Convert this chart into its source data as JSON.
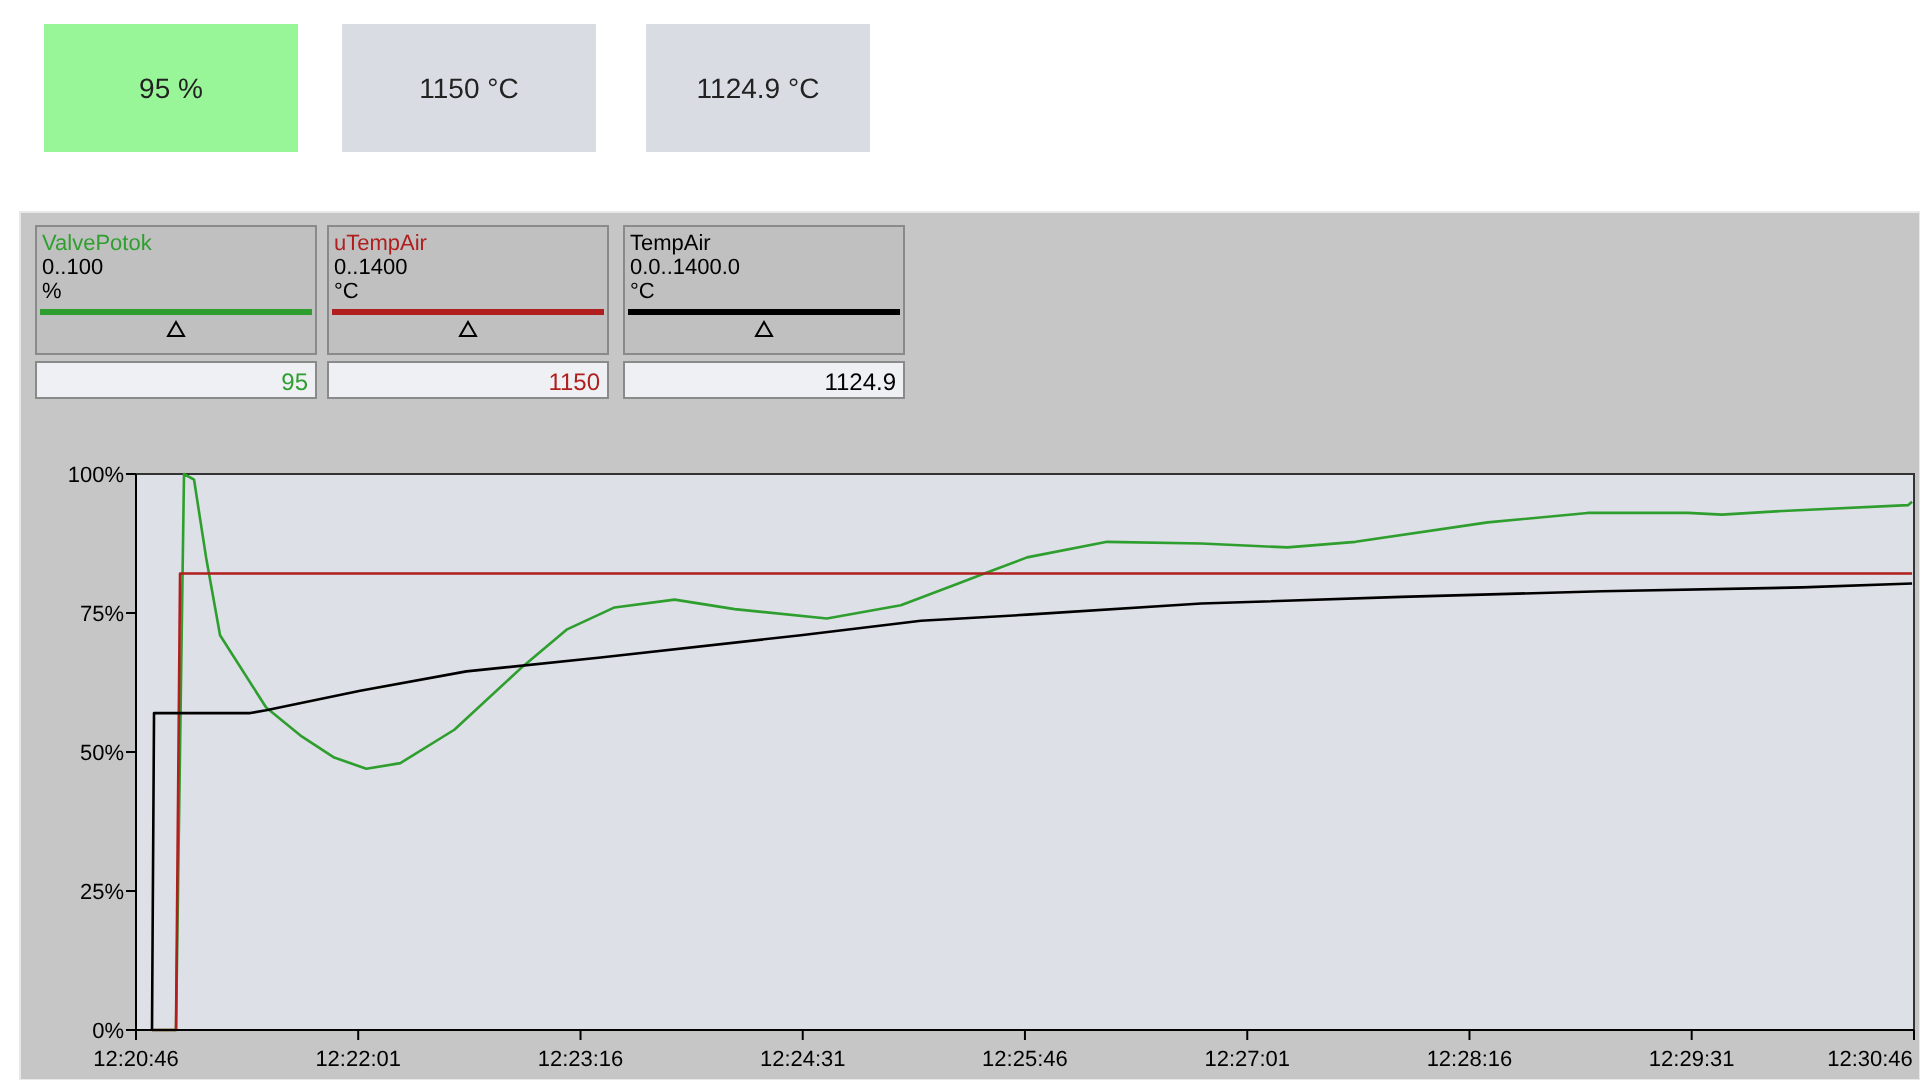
{
  "chart_data": {
    "type": "line",
    "annotations": [
      "95 %",
      "1150 °C",
      "1124.9 °C",
      "0..100",
      "%",
      "95",
      "0..1400",
      "°C",
      "1150",
      "0.0..1400.0",
      "°C",
      "1124.9"
    ],
    "xlim": [
      12.34611,
      12.51278
    ],
    "xticks": [
      {
        "value": 12.34611,
        "label": "12:20:46"
      },
      {
        "value": 12.36694,
        "label": "12:22:01"
      },
      {
        "value": 12.38778,
        "label": "12:23:16"
      },
      {
        "value": 12.40861,
        "label": "12:24:31"
      },
      {
        "value": 12.42944,
        "label": "12:25:46"
      },
      {
        "value": 12.45028,
        "label": "12:27:01"
      },
      {
        "value": 12.47111,
        "label": "12:28:16"
      },
      {
        "value": 12.49194,
        "label": "12:29:31"
      },
      {
        "value": 12.51278,
        "label": "12:30:46"
      }
    ],
    "ylim": [
      0,
      100
    ],
    "yticks": [
      {
        "value": 0,
        "label": "0%"
      },
      {
        "value": 25,
        "label": "25%"
      },
      {
        "value": 50,
        "label": "50%"
      },
      {
        "value": 75,
        "label": "75%"
      },
      {
        "value": 100,
        "label": "100%"
      }
    ],
    "grid": false,
    "legend": "top left",
    "marker": "none",
    "series": [
      {
        "name": "ValvePotok",
        "color": "#2e9e2e",
        "x": [
          12.34761,
          12.34986,
          12.35061,
          12.35155,
          12.35268,
          12.35399,
          12.35831,
          12.3615,
          12.36469,
          12.3677,
          12.37089,
          12.37595,
          12.38215,
          12.38647,
          12.39097,
          12.3966,
          12.40223,
          12.41087,
          12.41781,
          12.42344,
          12.42588,
          12.42964,
          12.43714,
          12.44597,
          12.45404,
          12.46042,
          12.47281,
          12.48219,
          12.49158,
          12.49477,
          12.50096,
          12.51222,
          12.5126
        ],
        "values": [
          0,
          0,
          100,
          99,
          85,
          71,
          58,
          53,
          49,
          47,
          48,
          54,
          65,
          72,
          76,
          77.4,
          75.7,
          74,
          76.4,
          80.5,
          82.3,
          85,
          87.8,
          87.5,
          86.8,
          87.8,
          91.3,
          93,
          93,
          92.7,
          93.4,
          94.4,
          95
        ]
      },
      {
        "name": "uTempAir",
        "color": "#b01e1e",
        "x": [
          12.34761,
          12.34986,
          12.35024,
          12.5126
        ],
        "values": [
          0,
          0,
          82.1,
          82.1
        ]
      },
      {
        "name": "TempAir",
        "color": "#000000",
        "x": [
          12.34761,
          12.3478,
          12.35681,
          12.35831,
          12.36713,
          12.37708,
          12.38966,
          12.40843,
          12.41969,
          12.42964,
          12.44597,
          12.46474,
          12.48351,
          12.50228,
          12.5126
        ],
        "values": [
          0,
          57,
          57,
          57.5,
          61,
          64.5,
          67,
          71,
          73.6,
          74.7,
          76.7,
          77.9,
          78.9,
          79.6,
          80.3
        ]
      }
    ]
  }
}
